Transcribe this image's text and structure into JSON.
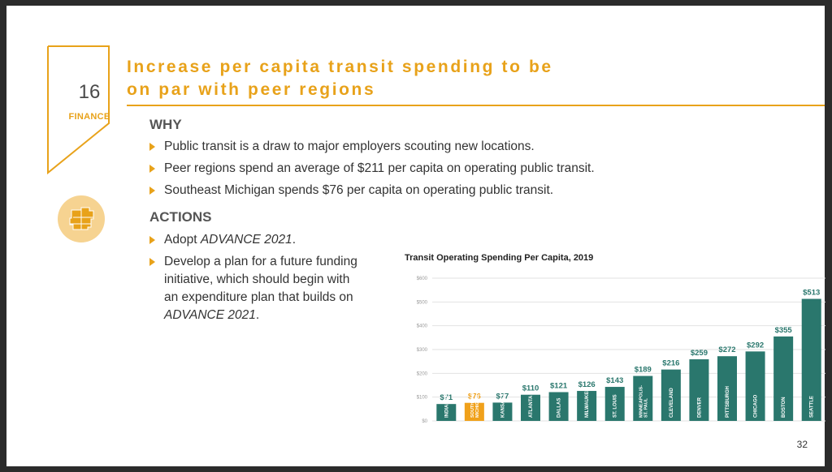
{
  "badge": {
    "number": "16",
    "label": "FINANCE"
  },
  "title": {
    "line1": "Increase per capita transit spending to be",
    "line2": "on par with peer regions"
  },
  "why": {
    "heading": "WHY",
    "bullets": [
      "Public transit is a draw to major employers scouting new locations.",
      "Peer regions spend an average of $211 per capita on operating public transit.",
      "Southeast Michigan spends $76 per capita on operating public transit."
    ]
  },
  "actions": {
    "heading": "ACTIONS",
    "b1_pre": "Adopt ",
    "b1_italic": "ADVANCE 2021",
    "b1_post": ".",
    "b2_l1": "Develop a plan for a future funding",
    "b2_l2": "initiative,  which should begin with",
    "b2_l3": "an expenditure plan that builds on",
    "b2_italic": "ADVANCE 2021",
    "b2_post": "."
  },
  "page_number": "32",
  "colors": {
    "accent": "#e8a21a",
    "bar": "#2a776d",
    "highlight": "#f0a11b"
  },
  "chart_data": {
    "type": "bar",
    "title": "Transit Operating Spending Per Capita, 2019",
    "ylim": [
      0,
      600
    ],
    "yticks": [
      "$0",
      "$100",
      "$200",
      "$300",
      "$400",
      "$500",
      "$600"
    ],
    "grid": true,
    "categories": [
      "INDIANAPOLIS",
      "SOUTHEAST MICHIGAN",
      "KANSAS CITY",
      "ATLANTA",
      "DALLAS",
      "MILWAUKEE",
      "ST. LOUIS",
      "MINNEAPOLIS-ST. PAUL",
      "CLEVELAND",
      "DENVER",
      "PITTSBURGH",
      "CHICAGO",
      "BOSTON",
      "SEATTLE"
    ],
    "values": [
      71,
      76,
      77,
      110,
      121,
      126,
      143,
      189,
      216,
      259,
      272,
      292,
      355,
      513
    ],
    "labels": [
      "$71",
      "$76",
      "$77",
      "$110",
      "$121",
      "$126",
      "$143",
      "$189",
      "$216",
      "$259",
      "$272",
      "$292",
      "$355",
      "$513"
    ],
    "highlight_index": 1
  }
}
